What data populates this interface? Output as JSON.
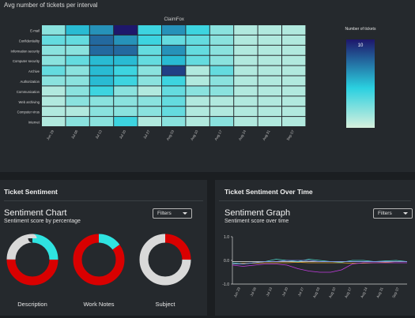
{
  "top": {
    "title": "Avg number of tickets per interval"
  },
  "heatmap": {
    "title": "ClaimFox",
    "rows": [
      "E-mail",
      "Confidentiality",
      "Information security",
      "Computer security",
      "Archive",
      "Authorization",
      "Communication",
      "Web archiving",
      "Computer virus",
      "Internet"
    ],
    "cols": [
      "Jun 29",
      "Jul 06",
      "Jul 13",
      "Jul 20",
      "Jul 27",
      "Aug 03",
      "Aug 10",
      "Aug 17",
      "Aug 24",
      "Aug 31",
      "Sep 07"
    ],
    "values": [
      [
        3,
        6,
        7,
        10,
        5,
        7,
        5,
        3,
        2,
        2,
        2
      ],
      [
        4,
        4,
        8,
        7,
        5,
        4,
        4,
        3,
        2,
        2,
        2
      ],
      [
        3,
        3,
        8,
        8,
        4,
        7,
        4,
        3,
        2,
        2,
        2
      ],
      [
        3,
        4,
        6,
        6,
        4,
        6,
        4,
        3,
        2,
        2,
        2
      ],
      [
        4,
        3,
        6,
        5,
        3,
        9,
        2,
        4,
        2,
        2,
        2
      ],
      [
        3,
        3,
        6,
        5,
        3,
        5,
        2,
        3,
        2,
        2,
        2
      ],
      [
        2,
        3,
        5,
        3,
        2,
        4,
        3,
        3,
        2,
        2,
        2
      ],
      [
        2,
        3,
        3,
        3,
        3,
        4,
        2,
        2,
        2,
        2,
        2
      ],
      [
        2,
        2,
        3,
        3,
        3,
        4,
        2,
        2,
        2,
        2,
        2
      ],
      [
        2,
        3,
        3,
        5,
        2,
        3,
        2,
        3,
        2,
        2,
        2
      ]
    ],
    "legend": {
      "title": "Number of tickets",
      "max_label": "10"
    },
    "colors": {
      "low": "#d7f0dd",
      "mid": "#2ad0e0",
      "high": "#1e176b"
    }
  },
  "sentiment": {
    "section_title": "Ticket Sentiment",
    "chart_title": "Sentiment Chart",
    "subtitle": "Sentiment score by percentage",
    "filters_label": "Filters",
    "donuts": [
      {
        "label": "Description",
        "slices": [
          {
            "value": 25,
            "color": "#2fe3e0"
          },
          {
            "value": 50,
            "color": "#d90000"
          },
          {
            "value": 25,
            "color": "#d9d9d9"
          }
        ]
      },
      {
        "label": "Work Notes",
        "slices": [
          {
            "value": 15,
            "color": "#2fe3e0"
          },
          {
            "value": 85,
            "color": "#d90000"
          }
        ]
      },
      {
        "label": "Subject",
        "slices": [
          {
            "value": 25,
            "color": "#d90000"
          },
          {
            "value": 75,
            "color": "#d9d9d9"
          }
        ]
      }
    ]
  },
  "over_time": {
    "section_title": "Ticket Sentiment Over Time",
    "chart_title": "Sentiment Graph",
    "subtitle": "Sentiment score over time",
    "filters_label": "Filters",
    "yticks": [
      "1.0",
      "0.0",
      "-1.0"
    ],
    "ylim": [
      -1,
      1
    ],
    "xticks": [
      "Jun 29",
      "Jul 06",
      "Jul 13",
      "Jul 20",
      "Jul 27",
      "Aug 03",
      "Aug 10",
      "Aug 17",
      "Aug 24",
      "Aug 31",
      "Sep 07"
    ],
    "series": [
      {
        "color": "#f2f2f2",
        "values": [
          -0.05,
          -0.05,
          -0.05,
          -0.05,
          -0.05,
          -0.05,
          -0.05,
          -0.05,
          -0.05,
          -0.05,
          -0.05,
          -0.05,
          -0.05,
          -0.05,
          -0.05,
          -0.05,
          -0.05
        ]
      },
      {
        "color": "#e3a52a",
        "values": [
          -0.15,
          -0.12,
          -0.12,
          -0.1,
          -0.1,
          -0.1,
          -0.08,
          -0.1,
          -0.1,
          -0.1,
          -0.1,
          -0.12,
          -0.12,
          -0.1,
          -0.08,
          -0.05,
          -0.05
        ]
      },
      {
        "color": "#4bd4c8",
        "values": [
          -0.1,
          -0.15,
          -0.1,
          -0.05,
          0.05,
          0.0,
          -0.05,
          0.05,
          0.0,
          -0.05,
          -0.08,
          0.0,
          0.0,
          -0.05,
          -0.02,
          0.0,
          -0.05
        ]
      },
      {
        "color": "#7e8cf0",
        "values": [
          -0.15,
          -0.15,
          -0.1,
          -0.05,
          -0.05,
          0.0,
          0.0,
          0.0,
          -0.05,
          -0.05,
          -0.05,
          -0.05,
          -0.05,
          -0.05,
          -0.05,
          -0.05,
          -0.05
        ]
      },
      {
        "color": "#c33be0",
        "values": [
          -0.2,
          -0.25,
          -0.2,
          -0.15,
          -0.15,
          -0.2,
          -0.35,
          -0.45,
          -0.5,
          -0.5,
          -0.4,
          -0.15,
          -0.1,
          -0.1,
          -0.1,
          -0.1,
          -0.1
        ]
      }
    ]
  }
}
